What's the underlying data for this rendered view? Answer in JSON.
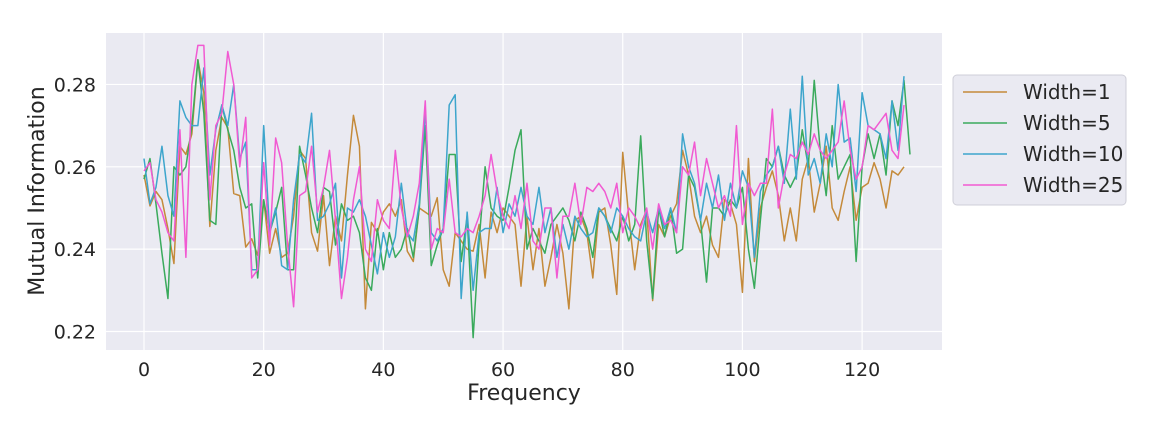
{
  "chart_data": {
    "type": "line",
    "xlabel": "Frequency",
    "ylabel": "Mutual Information",
    "xlim": [
      -6.35,
      133.35
    ],
    "ylim": [
      0.2155,
      0.2925
    ],
    "xticks": [
      "0",
      "20",
      "40",
      "60",
      "80",
      "100",
      "120"
    ],
    "yticks": [
      "0.22",
      "0.24",
      "0.26",
      "0.28"
    ],
    "grid": true,
    "legend_position": "outside-right",
    "series": [
      {
        "name": "Width=1",
        "color": "#c48a3a",
        "values": [
          0.258,
          0.2505,
          0.254,
          0.252,
          0.245,
          0.2365,
          0.265,
          0.263,
          0.268,
          0.286,
          0.278,
          0.2455,
          0.264,
          0.272,
          0.2695,
          0.2535,
          0.253,
          0.2405,
          0.2425,
          0.2385,
          0.252,
          0.239,
          0.245,
          0.238,
          0.239,
          0.248,
          0.264,
          0.262,
          0.244,
          0.2395,
          0.253,
          0.236,
          0.248,
          0.242,
          0.258,
          0.2725,
          0.265,
          0.2255,
          0.2465,
          0.244,
          0.249,
          0.251,
          0.248,
          0.252,
          0.2395,
          0.237,
          0.25,
          0.249,
          0.248,
          0.2525,
          0.235,
          0.231,
          0.244,
          0.242,
          0.24,
          0.2395,
          0.246,
          0.233,
          0.249,
          0.244,
          0.25,
          0.248,
          0.246,
          0.231,
          0.248,
          0.235,
          0.245,
          0.231,
          0.238,
          0.246,
          0.239,
          0.2255,
          0.247,
          0.248,
          0.244,
          0.233,
          0.249,
          0.25,
          0.241,
          0.229,
          0.2635,
          0.248,
          0.235,
          0.246,
          0.2495,
          0.2275,
          0.246,
          0.243,
          0.248,
          0.251,
          0.264,
          0.258,
          0.248,
          0.244,
          0.248,
          0.241,
          0.238,
          0.252,
          0.251,
          0.246,
          0.2295,
          0.262,
          0.237,
          0.25,
          0.255,
          0.259,
          0.253,
          0.242,
          0.25,
          0.242,
          0.257,
          0.262,
          0.249,
          0.256,
          0.265,
          0.25,
          0.247,
          0.254,
          0.26,
          0.247,
          0.255,
          0.256,
          0.261,
          0.257,
          0.25,
          0.259,
          0.258,
          0.26
        ]
      },
      {
        "name": "Width=5",
        "color": "#3aaa5c",
        "values": [
          0.257,
          0.262,
          0.251,
          0.239,
          0.228,
          0.26,
          0.258,
          0.26,
          0.27,
          0.286,
          0.273,
          0.247,
          0.246,
          0.275,
          0.269,
          0.264,
          0.255,
          0.25,
          0.251,
          0.233,
          0.252,
          0.244,
          0.249,
          0.255,
          0.235,
          0.235,
          0.265,
          0.258,
          0.25,
          0.244,
          0.255,
          0.254,
          0.241,
          0.251,
          0.247,
          0.248,
          0.244,
          0.233,
          0.23,
          0.245,
          0.235,
          0.244,
          0.238,
          0.24,
          0.245,
          0.238,
          0.25,
          0.27,
          0.236,
          0.241,
          0.245,
          0.263,
          0.263,
          0.237,
          0.248,
          0.2185,
          0.242,
          0.26,
          0.25,
          0.248,
          0.247,
          0.255,
          0.264,
          0.269,
          0.24,
          0.245,
          0.242,
          0.239,
          0.246,
          0.248,
          0.25,
          0.247,
          0.242,
          0.249,
          0.245,
          0.238,
          0.25,
          0.248,
          0.245,
          0.242,
          0.248,
          0.242,
          0.246,
          0.2675,
          0.242,
          0.228,
          0.25,
          0.243,
          0.25,
          0.239,
          0.24,
          0.258,
          0.255,
          0.247,
          0.232,
          0.25,
          0.25,
          0.248,
          0.252,
          0.25,
          0.255,
          0.24,
          0.2305,
          0.247,
          0.262,
          0.26,
          0.265,
          0.258,
          0.255,
          0.258,
          0.269,
          0.26,
          0.281,
          0.264,
          0.253,
          0.27,
          0.257,
          0.26,
          0.263,
          0.237,
          0.26,
          0.268,
          0.262,
          0.268,
          0.258,
          0.276,
          0.27,
          0.281,
          0.263
        ]
      },
      {
        "name": "Width=10",
        "color": "#3da5cc",
        "values": [
          0.262,
          0.251,
          0.255,
          0.265,
          0.253,
          0.248,
          0.276,
          0.272,
          0.27,
          0.27,
          0.284,
          0.258,
          0.269,
          0.275,
          0.27,
          0.28,
          0.262,
          0.266,
          0.235,
          0.235,
          0.27,
          0.244,
          0.25,
          0.236,
          0.235,
          0.252,
          0.263,
          0.261,
          0.273,
          0.247,
          0.248,
          0.251,
          0.256,
          0.233,
          0.25,
          0.249,
          0.252,
          0.248,
          0.241,
          0.234,
          0.244,
          0.238,
          0.243,
          0.256,
          0.244,
          0.242,
          0.251,
          0.274,
          0.244,
          0.242,
          0.245,
          0.275,
          0.2775,
          0.228,
          0.249,
          0.23,
          0.244,
          0.245,
          0.245,
          0.255,
          0.244,
          0.251,
          0.248,
          0.255,
          0.248,
          0.246,
          0.255,
          0.244,
          0.25,
          0.238,
          0.246,
          0.24,
          0.248,
          0.245,
          0.243,
          0.244,
          0.25,
          0.248,
          0.244,
          0.25,
          0.248,
          0.245,
          0.243,
          0.242,
          0.249,
          0.244,
          0.25,
          0.245,
          0.25,
          0.244,
          0.268,
          0.26,
          0.256,
          0.247,
          0.256,
          0.25,
          0.258,
          0.247,
          0.256,
          0.25,
          0.259,
          0.255,
          0.238,
          0.254,
          0.258,
          0.26,
          0.265,
          0.256,
          0.274,
          0.257,
          0.282,
          0.258,
          0.262,
          0.256,
          0.268,
          0.26,
          0.28,
          0.266,
          0.267,
          0.254,
          0.278,
          0.27,
          0.269,
          0.268,
          0.262,
          0.276,
          0.264,
          0.282
        ]
      },
      {
        "name": "Width=25",
        "color": "#f15ad2",
        "values": [
          0.259,
          0.261,
          0.252,
          0.249,
          0.244,
          0.242,
          0.269,
          0.238,
          0.28,
          0.2895,
          0.2895,
          0.252,
          0.27,
          0.273,
          0.288,
          0.28,
          0.26,
          0.272,
          0.233,
          0.235,
          0.261,
          0.241,
          0.267,
          0.261,
          0.241,
          0.226,
          0.253,
          0.254,
          0.265,
          0.249,
          0.255,
          0.264,
          0.247,
          0.228,
          0.238,
          0.252,
          0.26,
          0.24,
          0.237,
          0.252,
          0.247,
          0.245,
          0.264,
          0.25,
          0.243,
          0.248,
          0.256,
          0.276,
          0.24,
          0.245,
          0.244,
          0.257,
          0.244,
          0.243,
          0.245,
          0.244,
          0.248,
          0.253,
          0.263,
          0.254,
          0.248,
          0.245,
          0.253,
          0.245,
          0.256,
          0.242,
          0.24,
          0.25,
          0.25,
          0.233,
          0.248,
          0.248,
          0.256,
          0.246,
          0.255,
          0.254,
          0.256,
          0.254,
          0.25,
          0.256,
          0.244,
          0.25,
          0.248,
          0.245,
          0.25,
          0.24,
          0.251,
          0.246,
          0.247,
          0.244,
          0.26,
          0.258,
          0.266,
          0.253,
          0.262,
          0.256,
          0.25,
          0.253,
          0.248,
          0.27,
          0.246,
          0.256,
          0.253,
          0.256,
          0.256,
          0.274,
          0.25,
          0.258,
          0.263,
          0.262,
          0.266,
          0.263,
          0.268,
          0.264,
          0.262,
          0.264,
          0.266,
          0.276,
          0.264,
          0.257,
          0.26,
          0.27,
          0.269,
          0.271,
          0.273,
          0.264,
          0.262,
          0.275
        ]
      }
    ]
  }
}
